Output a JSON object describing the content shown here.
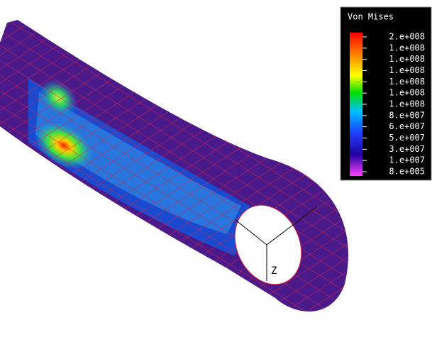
{
  "legend": {
    "title": "Von Mises",
    "labels": [
      "2.e+008",
      "1.e+008",
      "1.e+008",
      "1.e+008",
      "1.e+008",
      "1.e+008",
      "1.e+008",
      "8.e+007",
      "6.e+007",
      "5.e+007",
      "3.e+007",
      "1.e+007",
      "8.e+005"
    ]
  },
  "axis_label": "Z"
}
